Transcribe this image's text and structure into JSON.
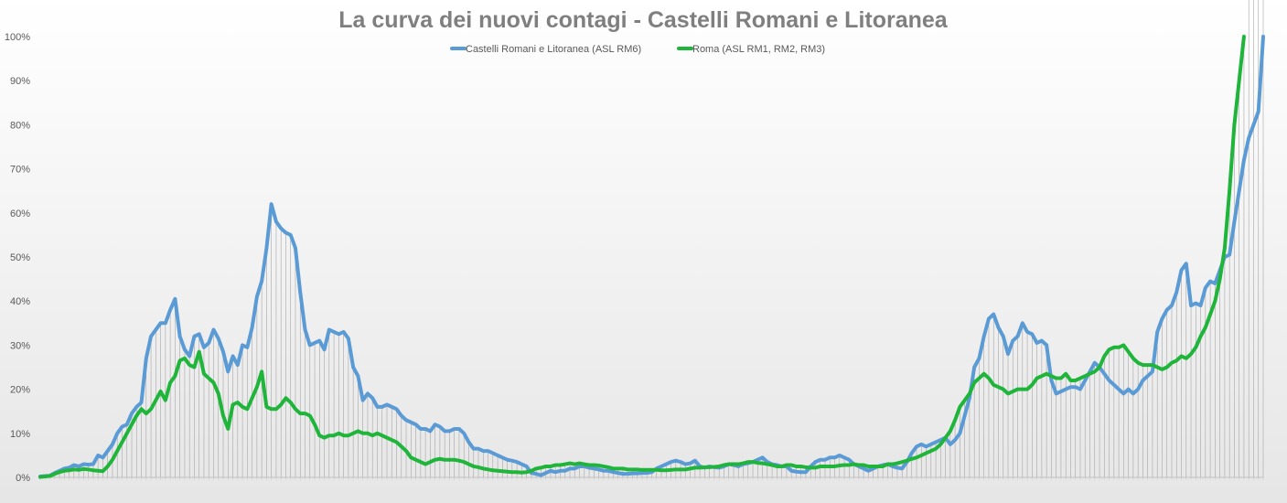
{
  "chart_data": {
    "type": "line",
    "title": "La curva dei nuovi contagi - Castelli Romani e Litoranea",
    "xlabel": "",
    "ylabel": "",
    "ylim": [
      0,
      100
    ],
    "y_ticks": [
      "0%",
      "10%",
      "20%",
      "30%",
      "40%",
      "50%",
      "60%",
      "70%",
      "80%",
      "90%",
      "100%"
    ],
    "y_tick_values": [
      0,
      10,
      20,
      30,
      40,
      50,
      60,
      70,
      80,
      90,
      100
    ],
    "x_tick_labels_legible": false,
    "grid": false,
    "drop_lines": true,
    "legend_position": "top",
    "colors": {
      "rm6": "#5b9bd5",
      "roma": "#1eb53a",
      "title": "#7f7f7f",
      "axis": "#bfbfbf",
      "drop": "#a6a6a6"
    },
    "series": [
      {
        "name": "Castelli Romani e Litoranea (ASL RM6)",
        "key": "rm6",
        "values": [
          0.2,
          0.3,
          0.4,
          1.0,
          1.5,
          2.0,
          2.2,
          2.8,
          2.5,
          3.0,
          2.9,
          3.0,
          5.0,
          4.5,
          6.0,
          7.5,
          10.0,
          11.5,
          12.0,
          14.5,
          16.0,
          17.0,
          27.0,
          32.0,
          33.5,
          35.0,
          35.0,
          38.0,
          40.5,
          32.0,
          29.0,
          27.5,
          32.0,
          32.5,
          29.5,
          30.5,
          33.5,
          31.5,
          28.5,
          24.0,
          27.5,
          25.5,
          30.0,
          29.5,
          34.0,
          41.0,
          44.5,
          52.0,
          62.0,
          58.0,
          56.5,
          55.5,
          55.0,
          52.0,
          42.0,
          33.5,
          30.0,
          30.5,
          31.0,
          29.0,
          33.5,
          33.0,
          32.5,
          33.0,
          31.5,
          25.0,
          23.0,
          17.5,
          19.0,
          18.0,
          16.0,
          16.0,
          16.5,
          16.0,
          15.5,
          14.0,
          13.0,
          12.5,
          12.0,
          11.0,
          11.0,
          10.5,
          12.0,
          11.5,
          10.5,
          10.5,
          11.0,
          11.0,
          10.0,
          8.0,
          6.5,
          6.5,
          6.0,
          6.0,
          5.5,
          5.0,
          4.5,
          4.0,
          3.8,
          3.5,
          3.0,
          2.5,
          1.0,
          0.8,
          0.5,
          1.0,
          1.5,
          1.2,
          1.5,
          1.5,
          2.0,
          2.0,
          2.5,
          2.5,
          2.2,
          2.0,
          1.8,
          1.5,
          1.5,
          1.2,
          1.0,
          0.8,
          0.8,
          0.9,
          0.9,
          1.0,
          1.0,
          1.2,
          2.0,
          2.5,
          3.0,
          3.5,
          3.8,
          3.5,
          3.0,
          3.2,
          3.8,
          2.5,
          2.2,
          2.5,
          2.3,
          2.2,
          2.5,
          3.0,
          2.8,
          2.5,
          3.0,
          3.2,
          3.5,
          4.0,
          4.5,
          3.5,
          3.0,
          2.8,
          2.5,
          2.5,
          1.5,
          1.3,
          1.2,
          1.2,
          2.5,
          3.5,
          4.0,
          4.0,
          4.5,
          4.5,
          5.0,
          4.5,
          4.0,
          3.0,
          2.5,
          2.0,
          1.5,
          2.0,
          2.5,
          2.8,
          3.0,
          2.5,
          2.2,
          2.0,
          3.5,
          5.5,
          7.0,
          7.5,
          7.0,
          7.5,
          8.0,
          8.5,
          9.0,
          7.5,
          8.5,
          10.0,
          14.0,
          18.0,
          25.0,
          27.0,
          32.0,
          36.0,
          37.0,
          34.0,
          32.0,
          28.0,
          31.0,
          32.0,
          35.0,
          33.0,
          32.5,
          30.5,
          31.0,
          30.0,
          22.0,
          19.0,
          19.5,
          20.0,
          20.5,
          20.5,
          20.0,
          22.0,
          24.0,
          26.0,
          25.0,
          23.5,
          22.0,
          21.0,
          20.0,
          19.0,
          20.0,
          19.0,
          20.0,
          22.0,
          23.0,
          24.0,
          33.0,
          36.0,
          38.0,
          39.0,
          42.0,
          47.0,
          48.5,
          39.0,
          39.5,
          39.0,
          43.0,
          44.5,
          44.0,
          47.0,
          50.0,
          50.5,
          58.0,
          65.0,
          72.0,
          77.0,
          80.0,
          83.0,
          100.0
        ]
      },
      {
        "name": "Roma (ASL RM1, RM2, RM3)",
        "key": "roma",
        "values": [
          0.1,
          0.2,
          0.3,
          0.8,
          1.2,
          1.5,
          1.6,
          1.8,
          1.7,
          1.9,
          1.8,
          1.6,
          1.5,
          1.4,
          2.5,
          4.0,
          6.0,
          8.0,
          10.0,
          12.0,
          14.0,
          15.5,
          14.5,
          15.5,
          17.5,
          19.5,
          17.5,
          21.5,
          23.0,
          26.5,
          27.0,
          25.5,
          25.0,
          28.5,
          23.5,
          22.5,
          21.5,
          19.0,
          14.0,
          11.0,
          16.5,
          17.0,
          16.0,
          15.5,
          18.0,
          20.5,
          24.0,
          16.0,
          15.5,
          15.5,
          16.5,
          18.0,
          17.0,
          15.5,
          14.5,
          14.5,
          14.0,
          12.0,
          9.5,
          9.0,
          9.5,
          9.5,
          10.0,
          9.5,
          9.5,
          10.0,
          10.5,
          10.0,
          10.0,
          9.5,
          10.0,
          9.5,
          9.0,
          8.5,
          8.0,
          7.0,
          6.0,
          4.5,
          4.0,
          3.5,
          3.0,
          3.5,
          4.0,
          4.2,
          4.0,
          4.0,
          4.0,
          3.8,
          3.5,
          3.0,
          2.5,
          2.3,
          2.0,
          1.8,
          1.6,
          1.5,
          1.4,
          1.3,
          1.2,
          1.2,
          1.1,
          1.2,
          1.5,
          2.0,
          2.2,
          2.5,
          2.5,
          2.8,
          2.8,
          3.0,
          3.2,
          3.0,
          3.2,
          3.0,
          2.8,
          2.8,
          2.7,
          2.5,
          2.3,
          2.0,
          2.0,
          2.0,
          1.8,
          1.8,
          1.8,
          1.7,
          1.7,
          1.7,
          1.7,
          1.6,
          1.6,
          1.7,
          1.8,
          1.8,
          1.8,
          2.0,
          2.2,
          2.2,
          2.3,
          2.3,
          2.4,
          2.5,
          2.8,
          3.0,
          3.0,
          3.0,
          3.2,
          3.5,
          3.5,
          3.3,
          3.2,
          3.0,
          2.8,
          2.5,
          2.5,
          2.8,
          2.8,
          2.5,
          2.5,
          2.3,
          2.2,
          2.2,
          2.5,
          2.5,
          2.5,
          2.5,
          2.7,
          2.8,
          2.8,
          3.0,
          2.8,
          2.8,
          2.5,
          2.5,
          2.5,
          2.5,
          3.0,
          3.0,
          3.2,
          3.5,
          3.8,
          4.2,
          4.5,
          5.0,
          5.5,
          6.0,
          6.5,
          7.5,
          9.0,
          10.5,
          13.0,
          16.0,
          17.5,
          19.0,
          21.5,
          22.5,
          23.5,
          22.5,
          21.0,
          20.5,
          20.0,
          19.0,
          19.5,
          20.0,
          20.0,
          20.0,
          21.0,
          22.5,
          23.0,
          23.5,
          23.0,
          22.5,
          22.5,
          23.5,
          22.0,
          22.0,
          22.5,
          23.0,
          23.5,
          24.0,
          25.0,
          27.5,
          29.0,
          29.5,
          29.5,
          30.0,
          28.5,
          27.0,
          26.0,
          25.5,
          25.5,
          25.5,
          25.0,
          24.5,
          25.0,
          26.0,
          26.5,
          27.5,
          27.0,
          28.0,
          29.5,
          32.0,
          34.0,
          37.0,
          40.0,
          45.0,
          52.0,
          65.0,
          80.0,
          90.0,
          100.0
        ]
      }
    ]
  }
}
